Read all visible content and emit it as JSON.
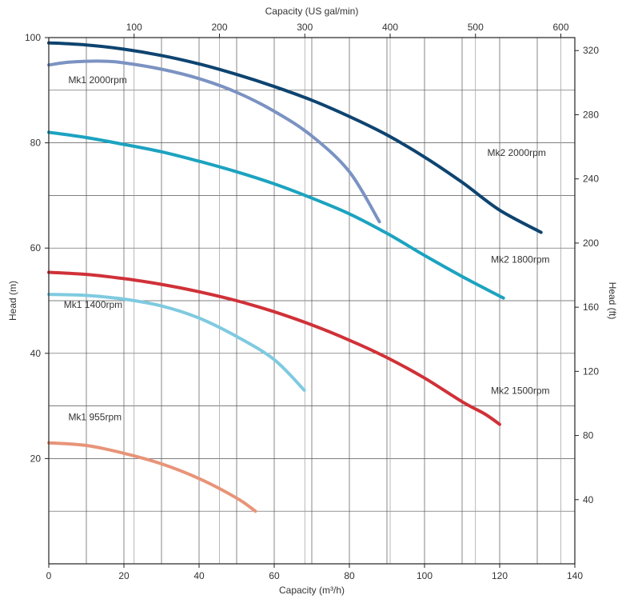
{
  "chart_data": {
    "type": "line",
    "xlabel": "Capacity (m³/h)",
    "x2label": "Capacity (US gal/min)",
    "ylabel": "Head (m)",
    "y2label": "Head (ft)",
    "xlim": [
      0,
      140
    ],
    "ylim": [
      0,
      100
    ],
    "x2lim": [
      0,
      616.4
    ],
    "y2lim": [
      0,
      328.1
    ],
    "x_ticks": [
      "0",
      "20",
      "40",
      "60",
      "80",
      "100",
      "120",
      "140"
    ],
    "y_ticks": [
      "20",
      "40",
      "60",
      "80",
      "100"
    ],
    "x2_ticks": [
      "100",
      "200",
      "300",
      "400",
      "500",
      "600"
    ],
    "y2_ticks": [
      "40",
      "80",
      "120",
      "160",
      "200",
      "240",
      "280",
      "320"
    ],
    "x_tick_values": [
      0,
      20,
      40,
      60,
      80,
      100,
      120,
      140
    ],
    "y_tick_values": [
      20,
      40,
      60,
      80,
      100
    ],
    "x2_tick_values": [
      100,
      200,
      300,
      400,
      500,
      600
    ],
    "y2_tick_values": [
      40,
      80,
      120,
      160,
      200,
      240,
      280,
      320
    ],
    "grid": true,
    "series": [
      {
        "name": "Mk2 2000rpm",
        "color": "#0e4470",
        "x": [
          0,
          10,
          20,
          30,
          40,
          50,
          60,
          70,
          80,
          90,
          100,
          110,
          120,
          131
        ],
        "y": [
          99,
          98.6,
          97.8,
          96.6,
          95,
          93,
          90.7,
          88.1,
          85,
          81.5,
          77.3,
          72.5,
          67.2,
          63
        ]
      },
      {
        "name": "Mk1 2000rpm",
        "color": "#7b93c2",
        "x": [
          0,
          5,
          10,
          15,
          20,
          30,
          40,
          50,
          60,
          70,
          80,
          88
        ],
        "y": [
          94.8,
          95.3,
          95.5,
          95.5,
          95.2,
          94,
          92.2,
          89.6,
          86,
          81.3,
          74.5,
          65
        ]
      },
      {
        "name": "Mk2 1800rpm",
        "color": "#1ca3c0",
        "x": [
          0,
          10,
          20,
          30,
          40,
          50,
          60,
          70,
          80,
          90,
          100,
          110,
          121
        ],
        "y": [
          82,
          81,
          79.7,
          78.3,
          76.5,
          74.5,
          72.2,
          69.5,
          66.5,
          62.8,
          58.6,
          54.6,
          50.5
        ]
      },
      {
        "name": "Mk2 1500rpm",
        "color": "#d03138",
        "x": [
          0,
          10,
          20,
          30,
          40,
          50,
          60,
          70,
          80,
          90,
          100,
          110,
          116,
          120
        ],
        "y": [
          55.4,
          55,
          54.2,
          53.1,
          51.7,
          50,
          47.9,
          45.4,
          42.5,
          39.2,
          35.3,
          30.8,
          28.5,
          26.5
        ]
      },
      {
        "name": "Mk1 1400rpm",
        "color": "#7fcae0",
        "x": [
          0,
          10,
          20,
          30,
          40,
          50,
          60,
          68
        ],
        "y": [
          51.2,
          51,
          50.3,
          49,
          46.7,
          43.2,
          38.8,
          33
        ]
      },
      {
        "name": "Mk1 955rpm",
        "color": "#e89478",
        "x": [
          0,
          10,
          20,
          30,
          40,
          50,
          55
        ],
        "y": [
          23,
          22.5,
          21,
          19,
          16.2,
          12.5,
          10
        ]
      }
    ]
  }
}
